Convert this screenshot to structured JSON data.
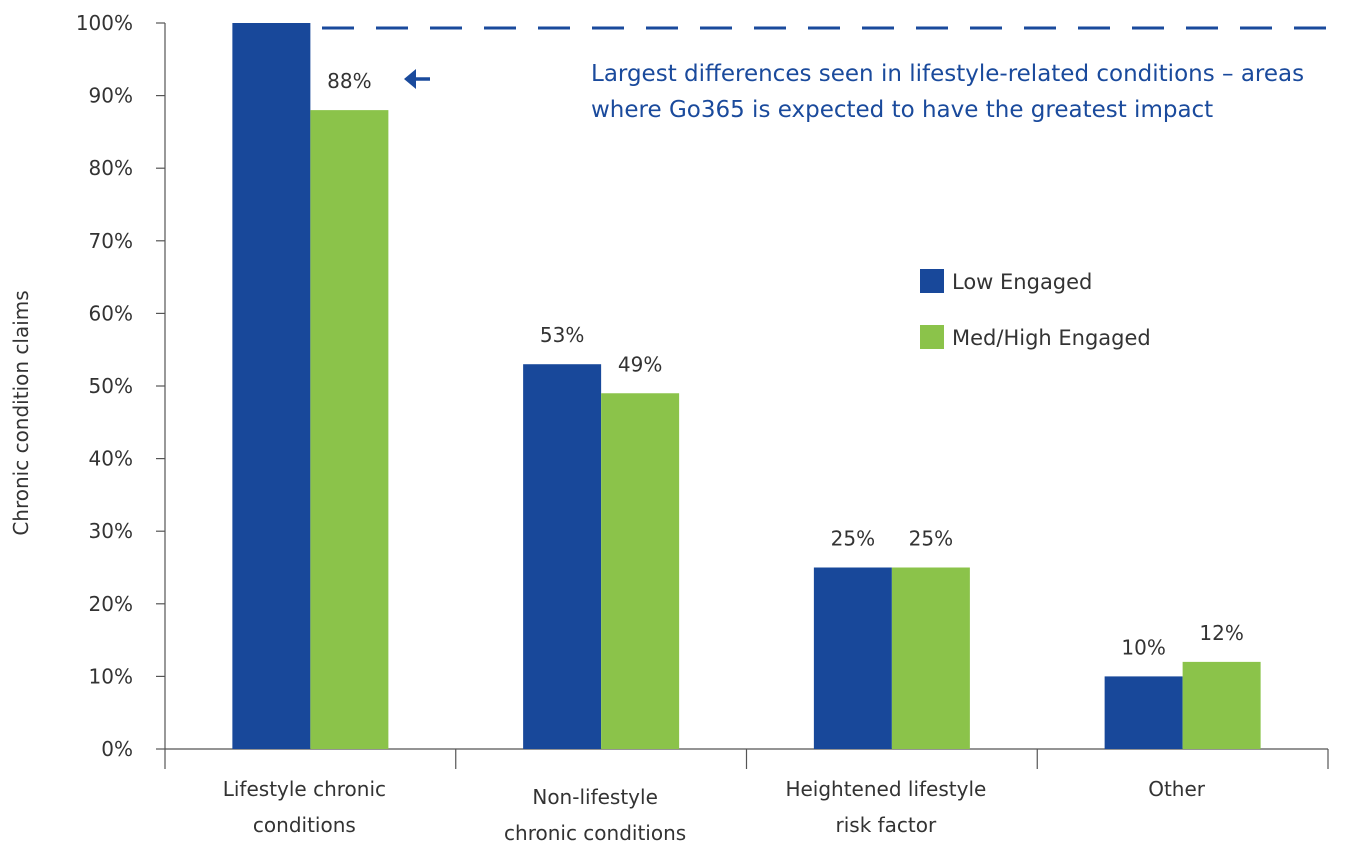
{
  "chart_data": {
    "type": "bar",
    "categories": [
      [
        "Lifestyle chronic",
        "conditions"
      ],
      [
        "Non-lifestyle",
        "chronic conditions"
      ],
      [
        "Heightened lifestyle",
        "risk factor"
      ],
      [
        "Other"
      ]
    ],
    "series": [
      {
        "name": "Low Engaged",
        "color": "#18489a",
        "values": [
          100,
          53,
          25,
          10
        ],
        "labels": [
          "",
          "53%",
          "25%",
          "10%"
        ]
      },
      {
        "name": "Med/High Engaged",
        "color": "#8bc34a",
        "values": [
          88,
          49,
          25,
          12
        ],
        "labels": [
          "88%",
          "49%",
          "25%",
          "12%"
        ]
      }
    ],
    "ylabel": "Chronic condition claims",
    "ylim": [
      0,
      100
    ],
    "yticks": [
      "0%",
      "10%",
      "20%",
      "30%",
      "40%",
      "50%",
      "60%",
      "70%",
      "80%",
      "90%",
      "100%"
    ],
    "reference_line": {
      "value": 100,
      "style": "dashed",
      "color": "#1a4a9c"
    },
    "annotation": {
      "lines": [
        "Largest differences seen in lifestyle-related conditions – areas",
        "where Go365 is expected to have the greatest impact"
      ],
      "color": "#1a4a9c",
      "arrow_icon": "left-arrow-icon"
    },
    "legend": {
      "placement": "right-middle"
    },
    "grid": false
  }
}
